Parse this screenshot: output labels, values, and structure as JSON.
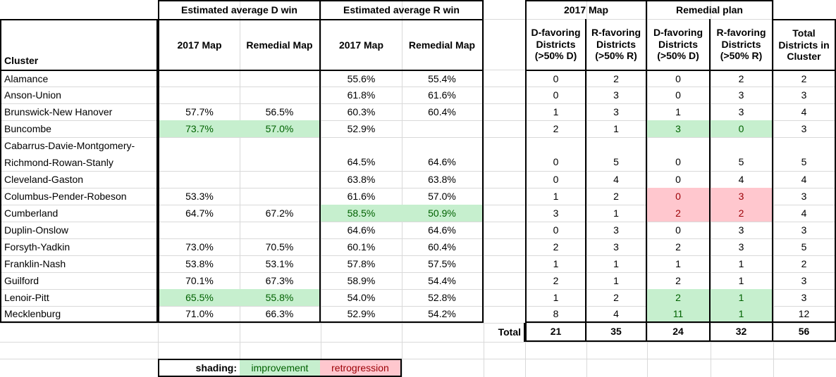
{
  "header_groups": {
    "d_win": "Estimated average D win",
    "r_win": "Estimated average R win",
    "map2017": "2017 Map",
    "remedial_plan": "Remedial plan"
  },
  "header_cols": {
    "cluster": "Cluster",
    "d_2017": "2017 Map",
    "d_remedial": "Remedial Map",
    "r_2017": "2017 Map",
    "r_remedial": "Remedial Map",
    "d17": "D-favoring Districts (>50% D)",
    "r17": "R-favoring Districts (>50% R)",
    "drem": "D-favoring Districts (>50% D)",
    "rrem": "R-favoring Districts (>50% R)",
    "total": "Total Districts in Cluster"
  },
  "rows": [
    {
      "name": "Alamance",
      "d2017": "",
      "drem": "",
      "r2017": "55.6%",
      "rrem": "55.4%",
      "d17": "0",
      "r17": "2",
      "dplan": "0",
      "rplan": "2",
      "total": "2"
    },
    {
      "name": "Anson-Union",
      "d2017": "",
      "drem": "",
      "r2017": "61.8%",
      "rrem": "61.6%",
      "d17": "0",
      "r17": "3",
      "dplan": "0",
      "rplan": "3",
      "total": "3"
    },
    {
      "name": "Brunswick-New Hanover",
      "d2017": "57.7%",
      "drem": "56.5%",
      "r2017": "60.3%",
      "rrem": "60.4%",
      "d17": "1",
      "r17": "3",
      "dplan": "1",
      "rplan": "3",
      "total": "4"
    },
    {
      "name": "Buncombe",
      "d2017": "73.7%",
      "drem": "57.0%",
      "r2017": "52.9%",
      "rrem": "",
      "d17": "2",
      "r17": "1",
      "dplan": "3",
      "rplan": "0",
      "total": "3"
    },
    {
      "name": "Cabarrus-Davie-Montgomery-",
      "name2": "Richmond-Rowan-Stanly",
      "d2017": "",
      "drem": "",
      "r2017": "64.5%",
      "rrem": "64.6%",
      "d17": "0",
      "r17": "5",
      "dplan": "0",
      "rplan": "5",
      "total": "5"
    },
    {
      "name": "Cleveland-Gaston",
      "d2017": "",
      "drem": "",
      "r2017": "63.8%",
      "rrem": "63.8%",
      "d17": "0",
      "r17": "4",
      "dplan": "0",
      "rplan": "4",
      "total": "4"
    },
    {
      "name": "Columbus-Pender-Robeson",
      "d2017": "53.3%",
      "drem": "",
      "r2017": "61.6%",
      "rrem": "57.0%",
      "d17": "1",
      "r17": "2",
      "dplan": "0",
      "rplan": "3",
      "total": "3"
    },
    {
      "name": "Cumberland",
      "d2017": "64.7%",
      "drem": "67.2%",
      "r2017": "58.5%",
      "rrem": "50.9%",
      "d17": "3",
      "r17": "1",
      "dplan": "2",
      "rplan": "2",
      "total": "4"
    },
    {
      "name": "Duplin-Onslow",
      "d2017": "",
      "drem": "",
      "r2017": "64.6%",
      "rrem": "64.6%",
      "d17": "0",
      "r17": "3",
      "dplan": "0",
      "rplan": "3",
      "total": "3"
    },
    {
      "name": "Forsyth-Yadkin",
      "d2017": "73.0%",
      "drem": "70.5%",
      "r2017": "60.1%",
      "rrem": "60.4%",
      "d17": "2",
      "r17": "3",
      "dplan": "2",
      "rplan": "3",
      "total": "5"
    },
    {
      "name": "Franklin-Nash",
      "d2017": "53.8%",
      "drem": "53.1%",
      "r2017": "57.8%",
      "rrem": "57.5%",
      "d17": "1",
      "r17": "1",
      "dplan": "1",
      "rplan": "1",
      "total": "2"
    },
    {
      "name": "Guilford",
      "d2017": "70.1%",
      "drem": "67.3%",
      "r2017": "58.9%",
      "rrem": "54.4%",
      "d17": "2",
      "r17": "1",
      "dplan": "2",
      "rplan": "1",
      "total": "3"
    },
    {
      "name": "Lenoir-Pitt",
      "d2017": "65.5%",
      "drem": "55.8%",
      "r2017": "54.0%",
      "rrem": "52.8%",
      "d17": "1",
      "r17": "2",
      "dplan": "2",
      "rplan": "1",
      "total": "3"
    },
    {
      "name": "Mecklenburg",
      "d2017": "71.0%",
      "drem": "66.3%",
      "r2017": "52.9%",
      "rrem": "54.2%",
      "d17": "8",
      "r17": "4",
      "dplan": "11",
      "rplan": "1",
      "total": "12"
    }
  ],
  "totals": {
    "label": "Total",
    "d17": "21",
    "r17": "35",
    "dplan": "24",
    "rplan": "32",
    "total": "56"
  },
  "legend": {
    "label": "shading:",
    "improvement": "improvement",
    "retrogression": "retrogression"
  },
  "colors": {
    "improvement_bg": "#c6efce",
    "improvement_text": "#006100",
    "retrogression_bg": "#ffc7ce",
    "retrogression_text": "#9c0006"
  }
}
